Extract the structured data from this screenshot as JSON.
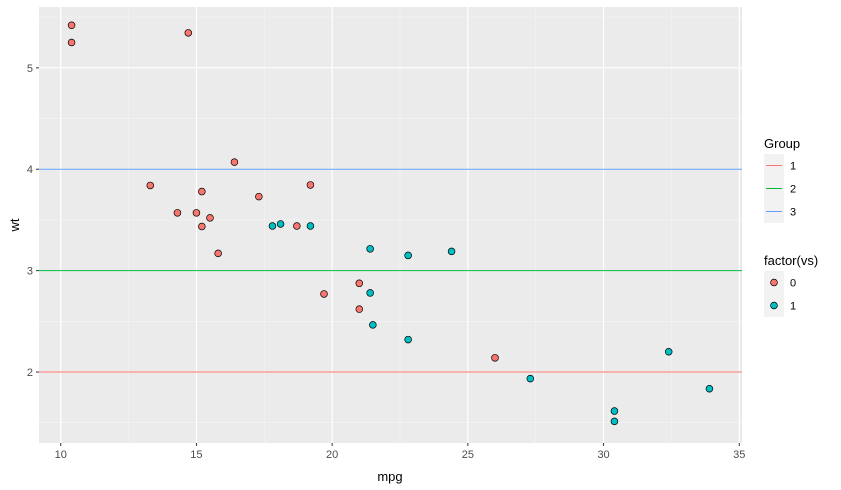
{
  "chart_data": {
    "type": "scatter",
    "xlabel": "mpg",
    "ylabel": "wt",
    "xlim": [
      9.2,
      35.1
    ],
    "ylim": [
      1.3,
      5.6
    ],
    "x_ticks": [
      10,
      15,
      20,
      25,
      30,
      35
    ],
    "y_ticks": [
      2,
      3,
      4,
      5
    ],
    "x_minor": [
      12.5,
      17.5,
      22.5,
      27.5,
      32.5
    ],
    "y_minor": [
      1.5,
      2.5,
      3.5,
      4.5,
      5.5
    ],
    "grid": true,
    "panel_background": "#ebebeb",
    "hlines": [
      {
        "name": "1",
        "y": 2,
        "color": "#f8766d"
      },
      {
        "name": "2",
        "y": 3,
        "color": "#00ba38"
      },
      {
        "name": "3",
        "y": 4,
        "color": "#619cff"
      }
    ],
    "series": [
      {
        "name": "0",
        "color": "#f8766d",
        "points": [
          [
            10.4,
            5.42
          ],
          [
            10.4,
            5.25
          ],
          [
            14.7,
            5.345
          ],
          [
            13.3,
            3.84
          ],
          [
            14.3,
            3.57
          ],
          [
            15.0,
            3.57
          ],
          [
            15.2,
            3.78
          ],
          [
            15.2,
            3.435
          ],
          [
            15.5,
            3.52
          ],
          [
            15.8,
            3.17
          ],
          [
            16.4,
            4.07
          ],
          [
            17.3,
            3.73
          ],
          [
            18.7,
            3.44
          ],
          [
            19.2,
            3.845
          ],
          [
            19.7,
            2.77
          ],
          [
            21.0,
            2.875
          ],
          [
            21.0,
            2.62
          ],
          [
            26.0,
            2.14
          ]
        ]
      },
      {
        "name": "1",
        "color": "#00bfc4",
        "points": [
          [
            17.8,
            3.44
          ],
          [
            18.1,
            3.46
          ],
          [
            19.2,
            3.44
          ],
          [
            21.4,
            3.215
          ],
          [
            21.4,
            2.78
          ],
          [
            21.5,
            2.465
          ],
          [
            22.8,
            3.15
          ],
          [
            22.8,
            2.32
          ],
          [
            24.4,
            3.19
          ],
          [
            27.3,
            1.935
          ],
          [
            30.4,
            1.615
          ],
          [
            30.4,
            1.513
          ],
          [
            32.4,
            2.2
          ],
          [
            33.9,
            1.835
          ]
        ]
      }
    ],
    "legends": [
      {
        "title": "Group",
        "entries": [
          "1",
          "2",
          "3"
        ]
      },
      {
        "title": "factor(vs)",
        "entries": [
          "0",
          "1"
        ]
      }
    ],
    "legend_position": "right"
  }
}
